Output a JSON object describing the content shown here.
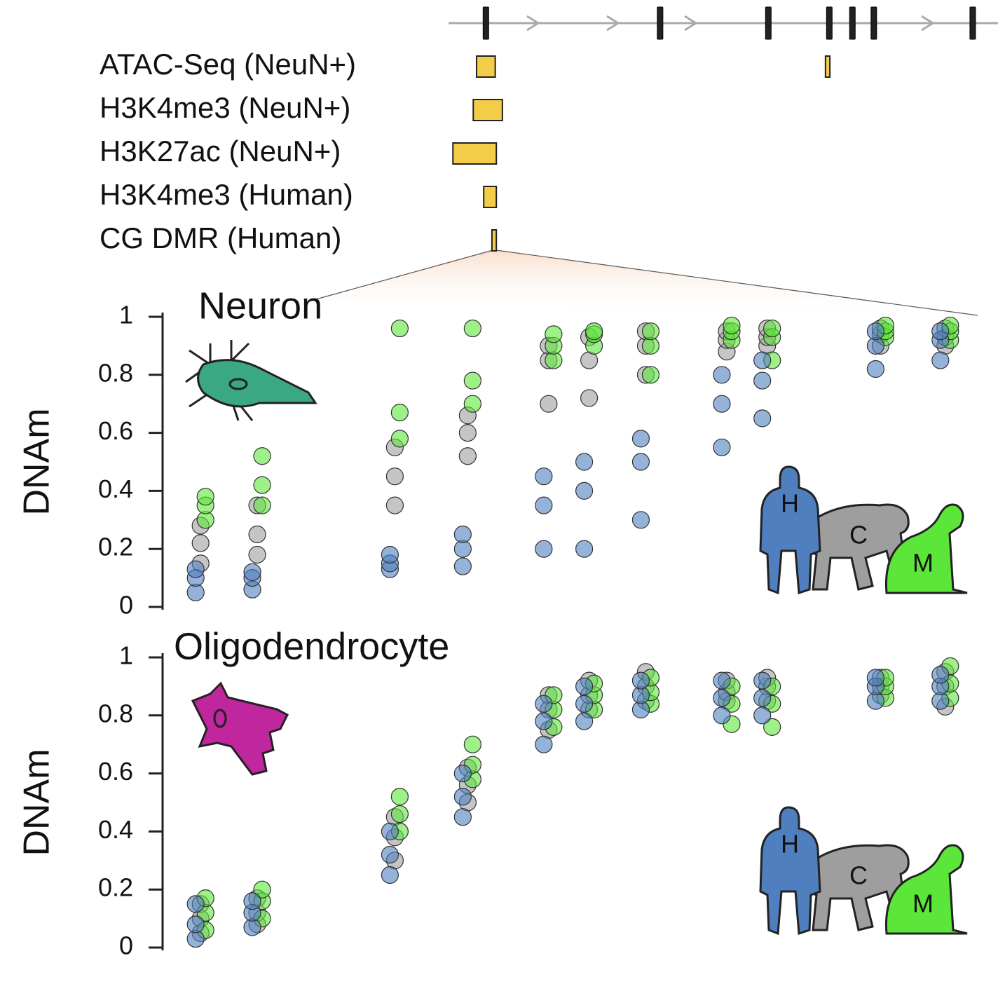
{
  "gene": {
    "xlim": [
      0,
      100
    ],
    "exons": [
      6.8,
      38.5,
      58.2,
      69.3,
      73.5,
      77.4,
      95.4
    ]
  },
  "tracks": [
    {
      "label": "ATAC-Seq (NeuN+)",
      "regions": [
        [
          5.1,
          8.5
        ],
        [
          68.6,
          69.4
        ]
      ]
    },
    {
      "label": "H3K4me3 (NeuN+)",
      "regions": [
        [
          4.5,
          9.8
        ]
      ]
    },
    {
      "label": "H3K27ac (NeuN+)",
      "regions": [
        [
          0.8,
          8.7
        ]
      ]
    },
    {
      "label": "H3K4me3 (Human)",
      "regions": [
        [
          6.4,
          8.7
        ]
      ]
    },
    {
      "label": "CG DMR (Human)",
      "regions": [
        [
          7.9,
          8.7
        ]
      ]
    }
  ],
  "chart_data": [
    {
      "type": "scatter",
      "title": "Neuron",
      "y_label": "DNAm",
      "xlim": [
        0,
        100
      ],
      "ylim": [
        0,
        1
      ],
      "yticks": [
        0,
        0.2,
        0.4,
        0.6,
        0.8,
        1
      ],
      "x": [
        4,
        4,
        4,
        11,
        11,
        11,
        28,
        28,
        28,
        37,
        37,
        37,
        47,
        47,
        47,
        52,
        52,
        52,
        59,
        59,
        59,
        69,
        69,
        69,
        74,
        74,
        74,
        88,
        88,
        88,
        96,
        96,
        96
      ],
      "series": [
        {
          "name": "H",
          "color": "#4f7fbf",
          "values": [
            0.05,
            0.1,
            0.13,
            0.06,
            0.1,
            0.12,
            0.13,
            0.15,
            0.18,
            0.14,
            0.2,
            0.25,
            0.2,
            0.35,
            0.45,
            0.2,
            0.4,
            0.5,
            0.3,
            0.5,
            0.58,
            0.55,
            0.7,
            0.8,
            0.65,
            0.78,
            0.85,
            0.82,
            0.9,
            0.95,
            0.85,
            0.92,
            0.95
          ]
        },
        {
          "name": "C",
          "color": "#9e9e9e",
          "values": [
            0.15,
            0.22,
            0.28,
            0.18,
            0.25,
            0.35,
            0.35,
            0.45,
            0.55,
            0.52,
            0.6,
            0.66,
            0.7,
            0.85,
            0.9,
            0.72,
            0.85,
            0.93,
            0.8,
            0.9,
            0.95,
            0.88,
            0.92,
            0.95,
            0.9,
            0.93,
            0.96,
            0.9,
            0.94,
            0.96,
            0.9,
            0.93,
            0.96
          ]
        },
        {
          "name": "M",
          "color": "#5de63a",
          "values": [
            0.3,
            0.35,
            0.38,
            0.35,
            0.42,
            0.52,
            0.58,
            0.67,
            0.96,
            0.7,
            0.78,
            0.96,
            0.85,
            0.9,
            0.94,
            0.9,
            0.94,
            0.95,
            0.8,
            0.9,
            0.95,
            0.92,
            0.95,
            0.97,
            0.85,
            0.93,
            0.96,
            0.93,
            0.95,
            0.97,
            0.92,
            0.95,
            0.97
          ]
        }
      ]
    },
    {
      "type": "scatter",
      "title": "Oligodendrocyte",
      "y_label": "DNAm",
      "xlim": [
        0,
        100
      ],
      "ylim": [
        0,
        1
      ],
      "yticks": [
        0,
        0.2,
        0.4,
        0.6,
        0.8,
        1
      ],
      "x": [
        4,
        4,
        4,
        11,
        11,
        11,
        28,
        28,
        28,
        37,
        37,
        37,
        47,
        47,
        47,
        52,
        52,
        52,
        59,
        59,
        59,
        69,
        69,
        69,
        74,
        74,
        74,
        88,
        88,
        88,
        96,
        96,
        96
      ],
      "series": [
        {
          "name": "H",
          "color": "#4f7fbf",
          "values": [
            0.03,
            0.08,
            0.15,
            0.07,
            0.12,
            0.16,
            0.25,
            0.32,
            0.4,
            0.45,
            0.52,
            0.6,
            0.7,
            0.78,
            0.84,
            0.78,
            0.84,
            0.9,
            0.82,
            0.87,
            0.92,
            0.8,
            0.86,
            0.92,
            0.8,
            0.86,
            0.92,
            0.85,
            0.9,
            0.93,
            0.85,
            0.9,
            0.94
          ]
        },
        {
          "name": "C",
          "color": "#9e9e9e",
          "values": [
            0.05,
            0.1,
            0.15,
            0.08,
            0.12,
            0.17,
            0.3,
            0.38,
            0.45,
            0.5,
            0.56,
            0.62,
            0.75,
            0.82,
            0.87,
            0.82,
            0.87,
            0.92,
            0.85,
            0.9,
            0.95,
            0.85,
            0.88,
            0.92,
            0.85,
            0.9,
            0.93,
            0.87,
            0.9,
            0.93,
            0.83,
            0.9,
            0.95
          ]
        },
        {
          "name": "M",
          "color": "#5de63a",
          "values": [
            0.06,
            0.12,
            0.17,
            0.1,
            0.16,
            0.2,
            0.4,
            0.46,
            0.52,
            0.58,
            0.63,
            0.7,
            0.76,
            0.82,
            0.87,
            0.82,
            0.87,
            0.91,
            0.84,
            0.88,
            0.93,
            0.77,
            0.84,
            0.9,
            0.76,
            0.84,
            0.9,
            0.86,
            0.9,
            0.93,
            0.86,
            0.91,
            0.97
          ]
        }
      ]
    }
  ]
}
